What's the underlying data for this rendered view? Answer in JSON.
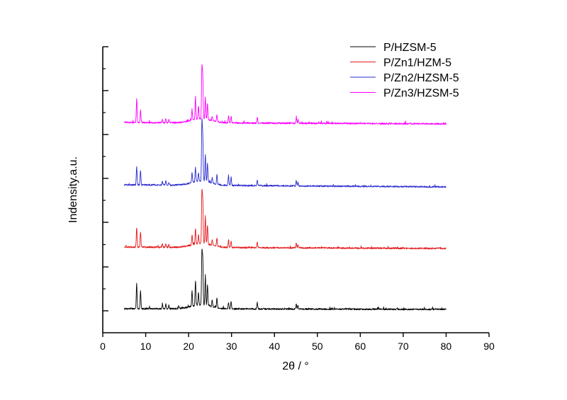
{
  "chart_data": {
    "type": "line",
    "title": "",
    "xlabel": "2θ / °",
    "ylabel": "Indensity.a.u.",
    "xlim": [
      0,
      90
    ],
    "xticks": [
      0,
      10,
      20,
      30,
      40,
      50,
      60,
      70,
      80,
      90
    ],
    "x_range": [
      5,
      80
    ],
    "yticks_labeled": false,
    "grid": false,
    "legend_position": "top-right",
    "series": [
      {
        "name": "P/HZSM-5",
        "color": "#000000",
        "peaks": [
          {
            "x": 7.9,
            "h": 35
          },
          {
            "x": 8.8,
            "h": 25
          },
          {
            "x": 13.9,
            "h": 6
          },
          {
            "x": 14.7,
            "h": 7
          },
          {
            "x": 15.4,
            "h": 5
          },
          {
            "x": 17.7,
            "h": 4
          },
          {
            "x": 20.8,
            "h": 22
          },
          {
            "x": 21.6,
            "h": 35
          },
          {
            "x": 22.3,
            "h": 18
          },
          {
            "x": 23.1,
            "h": 72
          },
          {
            "x": 23.3,
            "h": 62
          },
          {
            "x": 23.9,
            "h": 40
          },
          {
            "x": 24.4,
            "h": 28
          },
          {
            "x": 25.5,
            "h": 10
          },
          {
            "x": 26.6,
            "h": 14
          },
          {
            "x": 29.3,
            "h": 9
          },
          {
            "x": 29.9,
            "h": 10
          },
          {
            "x": 36.0,
            "h": 9
          },
          {
            "x": 45.1,
            "h": 7
          },
          {
            "x": 45.5,
            "h": 5
          }
        ]
      },
      {
        "name": "P/Zn1/HZM-5",
        "color": "#e31a1c",
        "peaks": [
          {
            "x": 7.9,
            "h": 28
          },
          {
            "x": 8.8,
            "h": 22
          },
          {
            "x": 13.9,
            "h": 5
          },
          {
            "x": 14.7,
            "h": 5
          },
          {
            "x": 15.4,
            "h": 4
          },
          {
            "x": 20.8,
            "h": 14
          },
          {
            "x": 21.6,
            "h": 22
          },
          {
            "x": 22.3,
            "h": 12
          },
          {
            "x": 23.1,
            "h": 70
          },
          {
            "x": 23.3,
            "h": 58
          },
          {
            "x": 23.9,
            "h": 40
          },
          {
            "x": 24.4,
            "h": 26
          },
          {
            "x": 25.5,
            "h": 8
          },
          {
            "x": 26.6,
            "h": 12
          },
          {
            "x": 29.3,
            "h": 10
          },
          {
            "x": 29.9,
            "h": 8
          },
          {
            "x": 36.0,
            "h": 8
          },
          {
            "x": 45.1,
            "h": 7
          },
          {
            "x": 45.5,
            "h": 5
          }
        ]
      },
      {
        "name": "P/Zn2/HZSM-5",
        "color": "#2b2bd0",
        "peaks": [
          {
            "x": 7.9,
            "h": 26
          },
          {
            "x": 8.8,
            "h": 21
          },
          {
            "x": 13.9,
            "h": 5
          },
          {
            "x": 14.7,
            "h": 6
          },
          {
            "x": 15.4,
            "h": 4
          },
          {
            "x": 20.8,
            "h": 14
          },
          {
            "x": 21.6,
            "h": 20
          },
          {
            "x": 22.3,
            "h": 12
          },
          {
            "x": 23.1,
            "h": 82
          },
          {
            "x": 23.3,
            "h": 60
          },
          {
            "x": 23.9,
            "h": 38
          },
          {
            "x": 24.4,
            "h": 26
          },
          {
            "x": 25.5,
            "h": 8
          },
          {
            "x": 26.6,
            "h": 14
          },
          {
            "x": 29.3,
            "h": 14
          },
          {
            "x": 29.9,
            "h": 12
          },
          {
            "x": 36.0,
            "h": 8
          },
          {
            "x": 45.1,
            "h": 8
          },
          {
            "x": 45.5,
            "h": 5
          }
        ]
      },
      {
        "name": "P/Zn3/HZSM-5",
        "color": "#ff00ff",
        "peaks": [
          {
            "x": 7.9,
            "h": 34
          },
          {
            "x": 8.8,
            "h": 18
          },
          {
            "x": 13.9,
            "h": 5
          },
          {
            "x": 14.7,
            "h": 6
          },
          {
            "x": 15.4,
            "h": 4
          },
          {
            "x": 20.8,
            "h": 14
          },
          {
            "x": 21.6,
            "h": 30
          },
          {
            "x": 22.3,
            "h": 18
          },
          {
            "x": 23.1,
            "h": 70
          },
          {
            "x": 23.3,
            "h": 58
          },
          {
            "x": 23.9,
            "h": 30
          },
          {
            "x": 24.4,
            "h": 22
          },
          {
            "x": 25.5,
            "h": 6
          },
          {
            "x": 26.6,
            "h": 10
          },
          {
            "x": 29.3,
            "h": 10
          },
          {
            "x": 29.9,
            "h": 8
          },
          {
            "x": 36.0,
            "h": 8
          },
          {
            "x": 45.1,
            "h": 8
          },
          {
            "x": 45.5,
            "h": 5
          }
        ]
      }
    ]
  }
}
